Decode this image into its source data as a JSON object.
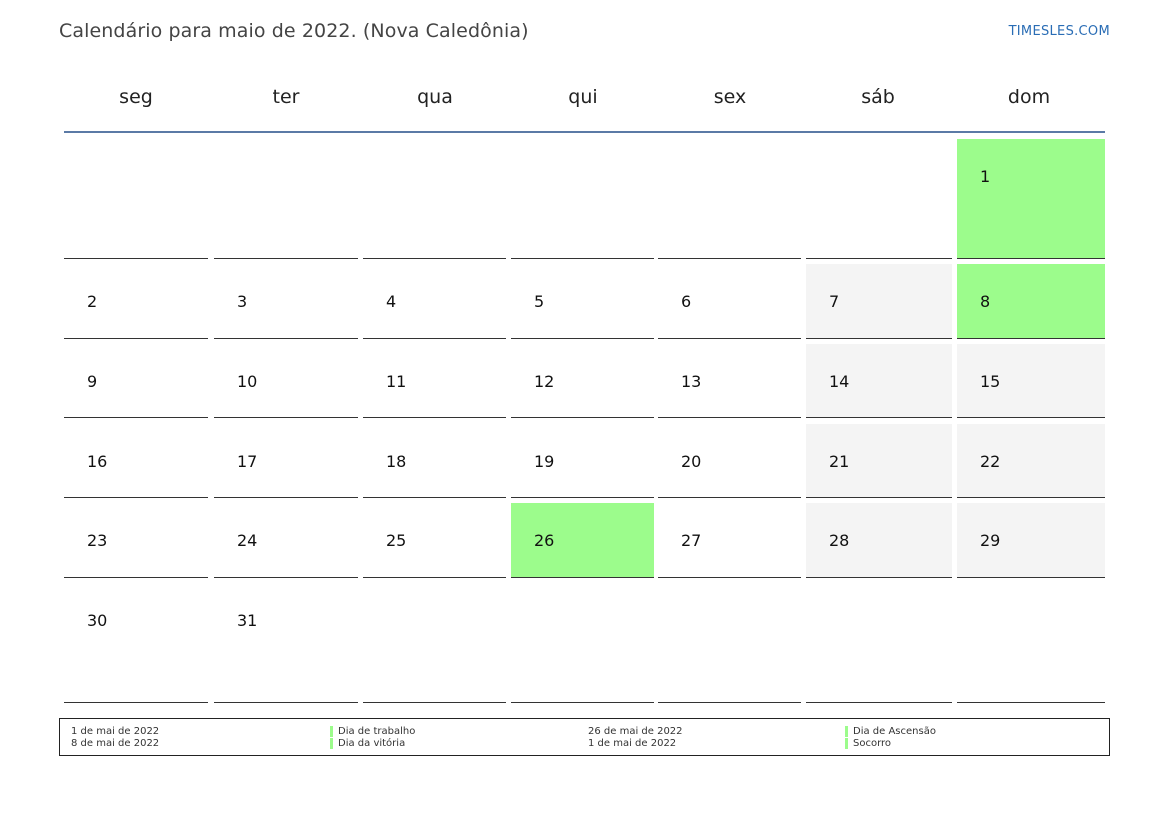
{
  "header": {
    "title": "Calendário para maio de 2022. (Nova Caledônia)",
    "brand": "TIMESLES.COM"
  },
  "weekdays": [
    "seg",
    "ter",
    "qua",
    "qui",
    "sex",
    "sáb",
    "dom"
  ],
  "colors": {
    "holiday": "#9cfc8c",
    "weekend": "#f4f4f4",
    "header_rule": "#5b7aa6",
    "brand": "#2a6db5"
  },
  "calendar": {
    "weeks": [
      [
        "",
        "",
        "",
        "",
        "",
        "",
        "1"
      ],
      [
        "2",
        "3",
        "4",
        "5",
        "6",
        "7",
        "8"
      ],
      [
        "9",
        "10",
        "11",
        "12",
        "13",
        "14",
        "15"
      ],
      [
        "16",
        "17",
        "18",
        "19",
        "20",
        "21",
        "22"
      ],
      [
        "23",
        "24",
        "25",
        "26",
        "27",
        "28",
        "29"
      ],
      [
        "30",
        "31",
        "",
        "",
        "",
        "",
        ""
      ]
    ],
    "holidays": [
      "1",
      "8",
      "26"
    ]
  },
  "legend": {
    "col1": {
      "dates": [
        "1 de mai de 2022",
        "8 de mai de 2022"
      ],
      "names": [
        "Dia de trabalho",
        "Dia da vitória"
      ]
    },
    "col2": {
      "dates": [
        "26 de mai de 2022",
        "1 de mai de 2022"
      ],
      "names": [
        "Dia de Ascensão",
        "Socorro"
      ]
    }
  }
}
